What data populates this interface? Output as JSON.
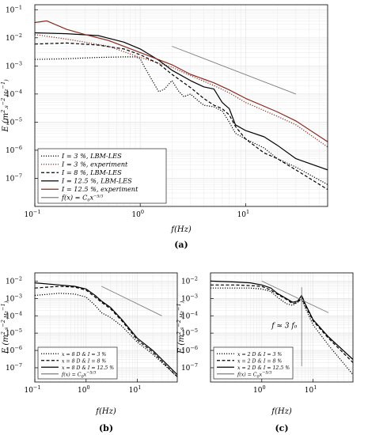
{
  "chart_data": [
    {
      "id": "a",
      "panel_label": "(a)",
      "type": "line",
      "xlabel": "f(Hz)",
      "ylabel": "E (m^2.s^-2.Hz^-1)",
      "xscale": "log",
      "yscale": "log",
      "xlim": [
        0.1,
        60
      ],
      "ylim": [
        1e-08,
        0.15
      ],
      "grid": true,
      "legend_position": "bottom-left",
      "x_ticks": [
        "10^-1",
        "10^0",
        "10^1"
      ],
      "y_ticks": [
        "10^-7",
        "10^-6",
        "10^-5",
        "10^-4",
        "10^-3",
        "10^-2",
        "10^-1"
      ],
      "series": [
        {
          "name": "I = 3 %, LBM-LES",
          "color": "#000000",
          "dash": "dotted",
          "x": [
            0.1,
            0.2,
            0.4,
            0.7,
            0.9,
            1.0,
            1.1,
            1.3,
            1.5,
            1.7,
            2.0,
            2.3,
            2.6,
            3,
            3.5,
            4,
            5,
            6,
            7,
            8,
            10,
            15,
            20,
            30,
            60
          ],
          "y": [
            0.0017,
            0.0018,
            0.002,
            0.0021,
            0.0021,
            0.0018,
            0.0009,
            0.0003,
            0.00012,
            0.00015,
            0.0003,
            0.00013,
            8e-05,
            0.0001,
            6e-05,
            4e-05,
            3.5e-05,
            2.5e-05,
            1e-05,
            4e-06,
            2.5e-06,
            1.2e-06,
            5e-07,
            2.5e-07,
            6e-08
          ]
        },
        {
          "name": "I = 3 %, experiment",
          "color": "#8b2a1e",
          "dash": "dotted",
          "x": [
            0.1,
            0.2,
            0.5,
            1,
            2,
            3,
            5,
            7,
            10,
            20,
            30,
            60
          ],
          "y": [
            0.013,
            0.009,
            0.005,
            0.002,
            0.0009,
            0.00045,
            0.0002,
            0.00011,
            5e-05,
            1.6e-05,
            8e-06,
            1.3e-06
          ]
        },
        {
          "name": "I = 8 %, LBM-LES",
          "color": "#000000",
          "dash": "dashed",
          "x": [
            0.1,
            0.2,
            0.4,
            0.7,
            1.0,
            1.5,
            2,
            3,
            4,
            5,
            6,
            7,
            8,
            10,
            15,
            20,
            30,
            60
          ],
          "y": [
            0.006,
            0.0065,
            0.0055,
            0.004,
            0.0025,
            0.0012,
            0.0005,
            0.00017,
            7e-05,
            4e-05,
            3e-05,
            1.8e-05,
            7e-06,
            2.5e-06,
            8e-07,
            5e-07,
            2e-07,
            4e-08
          ]
        },
        {
          "name": "I = 12.5 %, LBM-LES",
          "color": "#000000",
          "dash": "solid",
          "x": [
            0.1,
            0.2,
            0.4,
            0.7,
            1.0,
            1.5,
            2,
            3,
            4,
            5,
            6,
            7,
            8,
            10,
            15,
            20,
            30,
            60
          ],
          "y": [
            0.015,
            0.014,
            0.012,
            0.007,
            0.004,
            0.0016,
            0.0007,
            0.0003,
            0.00018,
            0.00015,
            5e-05,
            3e-05,
            8e-06,
            5e-06,
            3e-06,
            1.5e-06,
            5e-07,
            2e-07
          ]
        },
        {
          "name": "I = 12.5 %, experiment",
          "color": "#8b2a1e",
          "dash": "solid",
          "x": [
            0.1,
            0.13,
            0.2,
            0.3,
            0.5,
            1,
            2,
            3,
            5,
            7,
            10,
            20,
            30,
            60
          ],
          "y": [
            0.035,
            0.04,
            0.02,
            0.013,
            0.008,
            0.003,
            0.0011,
            0.0005,
            0.00025,
            0.00014,
            7e-05,
            2.3e-05,
            1.1e-05,
            2e-06
          ]
        },
        {
          "name": "f(x) = C0 x^-5/3",
          "color": "#7f7f7f",
          "dash": "solid",
          "x": [
            2,
            30
          ],
          "y": [
            0.005,
            0.0001
          ]
        }
      ]
    },
    {
      "id": "b",
      "panel_label": "(b)",
      "type": "line",
      "xlabel": "f(Hz)",
      "ylabel": "E (m^2.s^-2.Hz^-1)",
      "xscale": "log",
      "yscale": "log",
      "xlim": [
        0.1,
        60
      ],
      "ylim": [
        1.5e-08,
        0.03
      ],
      "grid": true,
      "legend_position": "bottom-left",
      "x_ticks": [
        "10^-1",
        "10^0",
        "10^1"
      ],
      "y_ticks": [
        "10^-7",
        "10^-6",
        "10^-5",
        "10^-4",
        "10^-3",
        "10^-2"
      ],
      "series": [
        {
          "name": "x = 8 D & I = 3 %",
          "color": "#000000",
          "dash": "dotted",
          "x": [
            0.1,
            0.3,
            0.6,
            1,
            1.5,
            2,
            3,
            5,
            10,
            20,
            60
          ],
          "y": [
            0.0015,
            0.002,
            0.0018,
            0.0012,
            0.0004,
            0.00015,
            8e-05,
            2.5e-05,
            3e-06,
            6e-07,
            3e-08
          ]
        },
        {
          "name": "x = 8 D & I = 8 %",
          "color": "#000000",
          "dash": "dashed",
          "x": [
            0.1,
            0.3,
            0.6,
            1,
            1.5,
            2,
            3,
            5,
            10,
            20,
            60
          ],
          "y": [
            0.004,
            0.005,
            0.0045,
            0.003,
            0.0012,
            0.0006,
            0.00025,
            5e-05,
            4e-06,
            8e-07,
            3e-08
          ]
        },
        {
          "name": "x = 8 D & I = 12.5 %",
          "color": "#000000",
          "dash": "solid",
          "x": [
            0.1,
            0.3,
            0.6,
            1,
            1.5,
            2,
            3,
            5,
            10,
            20,
            60
          ],
          "y": [
            0.008,
            0.006,
            0.005,
            0.0035,
            0.0015,
            0.0007,
            0.0003,
            6e-05,
            5e-06,
            1e-06,
            4e-08
          ]
        },
        {
          "name": "f(x) = C0 x^-5/3",
          "color": "#7f7f7f",
          "dash": "solid",
          "x": [
            2,
            30
          ],
          "y": [
            0.005,
            0.0001
          ]
        }
      ]
    },
    {
      "id": "c",
      "panel_label": "(c)",
      "type": "line",
      "xlabel": "f(Hz)",
      "ylabel": "E (m^2.s^-2.Hz^-1)",
      "xscale": "log",
      "yscale": "log",
      "xlim": [
        0.1,
        60
      ],
      "ylim": [
        1.5e-08,
        0.03
      ],
      "grid": true,
      "legend_position": "bottom-left",
      "annotation": "f ≈ 3 f0",
      "x_ticks": [
        "10^0",
        "10^1"
      ],
      "y_ticks": [
        "10^-7",
        "10^-6",
        "10^-5",
        "10^-4",
        "10^-3",
        "10^-2"
      ],
      "series": [
        {
          "name": "x = 2 D & I = 3 %",
          "color": "#000000",
          "dash": "dotted",
          "x": [
            0.1,
            0.3,
            0.6,
            1,
            1.5,
            2,
            3,
            4,
            5,
            6,
            7,
            10,
            20,
            60
          ],
          "y": [
            0.004,
            0.004,
            0.004,
            0.0035,
            0.0025,
            0.0012,
            0.0005,
            0.0004,
            0.0006,
            0.0009,
            0.0003,
            3e-05,
            2e-06,
            4e-08
          ]
        },
        {
          "name": "x = 2 D & I = 8 %",
          "color": "#000000",
          "dash": "dashed",
          "x": [
            0.1,
            0.3,
            0.6,
            1,
            1.5,
            2,
            3,
            4,
            5,
            6,
            7,
            10,
            20,
            60
          ],
          "y": [
            0.006,
            0.006,
            0.0055,
            0.005,
            0.003,
            0.0018,
            0.0009,
            0.0005,
            0.0006,
            0.0012,
            0.0004,
            5e-05,
            5e-06,
            2e-07
          ]
        },
        {
          "name": "x = 2 D & I = 12.5 %",
          "color": "#000000",
          "dash": "solid",
          "x": [
            0.1,
            0.3,
            0.6,
            1,
            1.5,
            2,
            3,
            4,
            5,
            6,
            7,
            10,
            20,
            60
          ],
          "y": [
            0.01,
            0.009,
            0.008,
            0.006,
            0.004,
            0.002,
            0.001,
            0.0006,
            0.0007,
            0.0015,
            0.0005,
            6e-05,
            6e-06,
            3e-07
          ]
        },
        {
          "name": "f(x) = C0 x^-5/3",
          "color": "#7f7f7f",
          "dash": "solid",
          "x": [
            1,
            20
          ],
          "y": [
            0.01,
            0.00015
          ]
        }
      ]
    }
  ]
}
